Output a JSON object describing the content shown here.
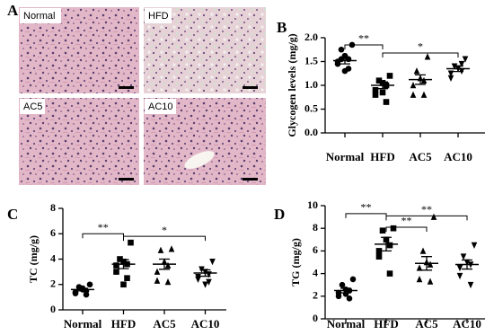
{
  "panel_a": {
    "label": "A",
    "images": [
      "Normal",
      "HFD",
      "AC5",
      "AC10"
    ]
  },
  "chart_data": [
    {
      "type": "dotplot",
      "panel": "B",
      "ylabel": "Glycogen levels (mg/g)",
      "categories": [
        "Normal",
        "HFD",
        "AC5",
        "AC10"
      ],
      "markers": [
        "circle",
        "square",
        "triangle-up",
        "triangle-down"
      ],
      "color": "#000000",
      "values": [
        [
          1.85,
          1.75,
          1.62,
          1.55,
          1.5,
          1.45,
          1.35,
          1.3,
          1.55
        ],
        [
          1.2,
          1.1,
          1.05,
          1.0,
          0.9,
          0.8,
          0.65,
          0.85
        ],
        [
          1.6,
          1.3,
          1.15,
          1.1,
          1.0,
          0.8,
          0.8
        ],
        [
          1.55,
          1.4,
          1.35,
          1.3,
          1.25,
          1.15,
          1.45
        ]
      ],
      "means": [
        1.52,
        1.0,
        1.12,
        1.35
      ],
      "sems": [
        0.07,
        0.07,
        0.1,
        0.06
      ],
      "ylim": [
        0,
        2
      ],
      "yticks": [
        {
          "value": 0,
          "label": "0.0"
        },
        0.5,
        {
          "value": 1,
          "label": "1.0"
        },
        1.5,
        {
          "value": 2,
          "label": "2.0"
        }
      ],
      "comparisons": [
        {
          "groups": [
            "Normal",
            "HFD"
          ],
          "label": "**",
          "y": 1.85
        },
        {
          "groups": [
            "HFD",
            "AC10"
          ],
          "label": "*",
          "y": 1.68
        }
      ]
    },
    {
      "type": "dotplot",
      "panel": "C",
      "ylabel": "TC (mg/g)",
      "categories": [
        "Normal",
        "HFD",
        "AC5",
        "AC10"
      ],
      "markers": [
        "circle",
        "square",
        "triangle-up",
        "triangle-down"
      ],
      "color": "#000000",
      "values": [
        [
          2.0,
          1.8,
          1.6,
          1.5,
          1.4,
          1.3,
          1.2,
          1.7
        ],
        [
          5.3,
          4.0,
          3.8,
          3.6,
          3.5,
          3.0,
          2.5,
          2.0
        ],
        [
          4.8,
          4.7,
          3.8,
          3.5,
          3.0,
          2.3,
          2.2
        ],
        [
          3.8,
          3.2,
          3.0,
          2.8,
          2.6,
          2.4,
          2.2,
          2.0
        ]
      ],
      "means": [
        1.6,
        3.6,
        3.6,
        2.9
      ],
      "sems": [
        0.1,
        0.35,
        0.4,
        0.25
      ],
      "ylim": [
        0,
        8
      ],
      "yticks": [
        0,
        2,
        4,
        6,
        8
      ],
      "comparisons": [
        {
          "groups": [
            "Normal",
            "HFD"
          ],
          "label": "**",
          "y": 6.0
        },
        {
          "groups": [
            "HFD",
            "AC10"
          ],
          "label": "*",
          "y": 5.8
        }
      ]
    },
    {
      "type": "dotplot",
      "panel": "D",
      "ylabel": "TG (mg/g)",
      "categories": [
        "Normal",
        "HFD",
        "AC5",
        "AC10"
      ],
      "markers": [
        "circle",
        "square",
        "triangle-up",
        "triangle-down"
      ],
      "color": "#000000",
      "values": [
        [
          3.5,
          3.0,
          2.6,
          2.5,
          2.3,
          2.0,
          1.8,
          2.2
        ],
        [
          8.0,
          7.8,
          7.0,
          6.5,
          6.0,
          5.5,
          4.0
        ],
        [
          9.0,
          6.0,
          5.0,
          4.8,
          4.5,
          3.5,
          3.3
        ],
        [
          6.5,
          5.5,
          5.0,
          4.8,
          4.5,
          3.8,
          3.0
        ]
      ],
      "means": [
        2.5,
        6.6,
        4.9,
        4.8
      ],
      "sems": [
        0.2,
        0.6,
        0.6,
        0.4
      ],
      "ylim": [
        0,
        10
      ],
      "yticks": [
        0,
        2,
        4,
        6,
        8,
        10
      ],
      "comparisons": [
        {
          "groups": [
            "Normal",
            "HFD"
          ],
          "label": "**",
          "y": 9.3
        },
        {
          "groups": [
            "HFD",
            "AC5"
          ],
          "label": "**",
          "y": 8.1
        },
        {
          "groups": [
            "HFD",
            "AC10"
          ],
          "label": "**",
          "y": 9.1
        }
      ]
    }
  ]
}
